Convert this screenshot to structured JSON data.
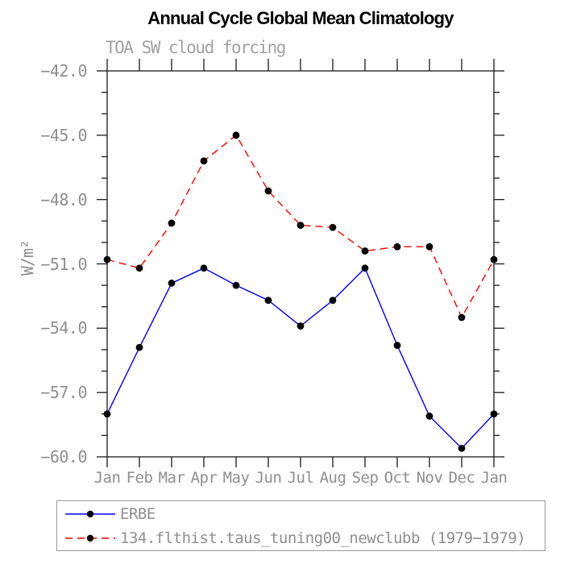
{
  "chart_data": {
    "type": "line",
    "title": "Annual Cycle Global Mean Climatology",
    "subtitle": "TOA SW cloud forcing",
    "ylabel": "W/m²",
    "x_categories": [
      "Jan",
      "Feb",
      "Mar",
      "Apr",
      "May",
      "Jun",
      "Jul",
      "Aug",
      "Sep",
      "Oct",
      "Nov",
      "Dec",
      "Jan"
    ],
    "ylim": [
      -60.0,
      -42.0
    ],
    "y_ticks": [
      -42.0,
      -45.0,
      -48.0,
      -51.0,
      -54.0,
      -57.0,
      -60.0
    ],
    "y_tick_labels": [
      "−42.0",
      "−45.0",
      "−48.0",
      "−51.0",
      "−54.0",
      "−57.0",
      "−60.0"
    ],
    "y_minor_tick_interval": 1.0,
    "grid": "off",
    "legend_position": "bottom",
    "marker": {
      "shape": "dot",
      "color": "#000000"
    },
    "series": [
      {
        "name": "ERBE",
        "style": "solid",
        "color": "#0000ff",
        "values": [
          -58.0,
          -54.9,
          -51.9,
          -51.2,
          -52.0,
          -52.7,
          -53.9,
          -52.7,
          -51.2,
          -54.8,
          -58.1,
          -59.6,
          -58.0
        ]
      },
      {
        "name": "134.flthist.taus_tuning00_newclubb (1979−1979)",
        "style": "dashed",
        "color": "#ff0000",
        "values": [
          -50.8,
          -51.2,
          -49.1,
          -46.2,
          -45.0,
          -47.6,
          -49.2,
          -49.3,
          -50.4,
          -50.2,
          -50.2,
          -53.5,
          -50.8
        ]
      }
    ]
  }
}
